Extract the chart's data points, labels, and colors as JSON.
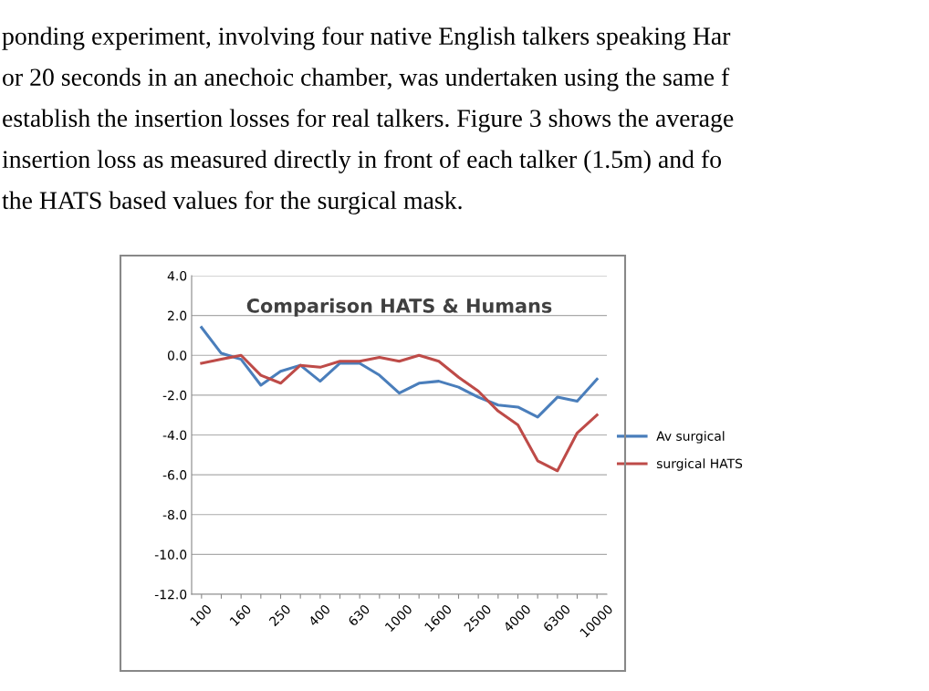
{
  "chart_data": {
    "type": "line",
    "title": "Comparison HATS & Humans",
    "annotations": [
      "ponding experiment, involving four native English talkers speaking Har",
      "or 20 seconds in an anechoic chamber, was undertaken using the same f",
      "establish the insertion losses for real talkers. Figure 3 shows the average",
      "insertion loss as measured directly in front of each talker (1.5m) and fo",
      "the HATS based values for the surgical mask."
    ],
    "categories": [
      "100",
      null,
      "160",
      null,
      "250",
      null,
      "400",
      null,
      "630",
      null,
      "1000",
      null,
      "1600",
      null,
      "2500",
      null,
      "4000",
      null,
      "6300",
      null,
      "10000"
    ],
    "series": [
      {
        "name": "Av surgical",
        "color": "#4a7ebb",
        "values": [
          1.4,
          0.1,
          -0.2,
          -1.5,
          -0.8,
          -0.5,
          -1.3,
          -0.4,
          -0.4,
          -1.0,
          -1.9,
          -1.4,
          -1.3,
          -1.6,
          -2.1,
          -2.5,
          -2.6,
          -3.1,
          -2.1,
          -2.3,
          -1.2
        ]
      },
      {
        "name": "surgical HATS",
        "color": "#be4b48",
        "values": [
          -0.4,
          -0.2,
          0.0,
          -1.0,
          -1.4,
          -0.5,
          -0.6,
          -0.3,
          -0.3,
          -0.1,
          -0.3,
          0.0,
          -0.3,
          -1.1,
          -1.8,
          -2.8,
          -3.5,
          -5.3,
          -5.8,
          -3.9,
          -3.0
        ]
      }
    ],
    "ylim": [
      -12,
      4
    ],
    "yticks": [
      {
        "value": -12,
        "label": "-12.0"
      },
      {
        "value": -10,
        "label": "-10.0"
      },
      {
        "value": -8,
        "label": "-8.0"
      },
      {
        "value": -6,
        "label": "-6.0"
      },
      {
        "value": -4,
        "label": "-4.0"
      },
      {
        "value": -2,
        "label": "-2.0"
      },
      {
        "value": 0,
        "label": "0.0"
      },
      {
        "value": 2,
        "label": "2.0"
      },
      {
        "value": 4,
        "label": "4.0"
      }
    ],
    "grid": "y",
    "legend": "right",
    "marker": "none",
    "line_style": "solid"
  }
}
